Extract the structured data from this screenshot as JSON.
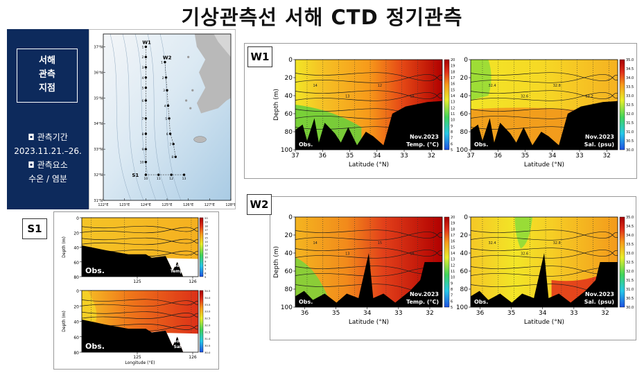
{
  "title": "기상관측선 서해 CTD 정기관측",
  "info": {
    "box_lines": [
      "서해",
      "관측",
      "지점"
    ],
    "period_label": "◘ 관측기간",
    "period_value": "2023.11.21.–26.",
    "elements_label": "◘ 관측요소",
    "elements_value": "수온 / 염분"
  },
  "map": {
    "lat_labels": [
      "37°N",
      "36°N",
      "35°N",
      "34°N",
      "33°N",
      "32°N",
      "31°N"
    ],
    "lon_labels": [
      "122°E",
      "123°E",
      "124°E",
      "125°E",
      "126°E",
      "127°E",
      "128°E"
    ],
    "line_labels": [
      "W1",
      "W2",
      "S1"
    ],
    "w1_station_numbers": [
      "1",
      "2",
      "3",
      "4",
      "5",
      "6",
      "7",
      "8",
      "9",
      "10"
    ],
    "w2_station_numbers": [
      "1",
      "2",
      "3",
      "4",
      "5",
      "6",
      "7",
      "8"
    ],
    "s1_station_numbers": [
      "10",
      "11",
      "12",
      "13"
    ]
  },
  "tags": {
    "w1": "W1",
    "w2": "W2",
    "s1": "S1"
  },
  "chart_data": [
    {
      "id": "w1-temp",
      "type": "heatmap",
      "section": "W1",
      "xlabel": "Latitude (°N)",
      "ylabel": "Depth (m)",
      "x_ticks": [
        "37",
        "36",
        "35",
        "34",
        "33",
        "32"
      ],
      "y_ticks": [
        "0",
        "20",
        "40",
        "60",
        "80",
        "100"
      ],
      "xlim": [
        37,
        31.6
      ],
      "ylim": [
        0,
        100
      ],
      "obs_label": "Obs.",
      "date_label": "Nov.2023",
      "var_label": "Temp. (°C)",
      "colorbar": [
        "20",
        "19",
        "18",
        "17",
        "16",
        "15",
        "14",
        "13",
        "12",
        "11",
        "10",
        "9",
        "8",
        "7",
        "6",
        "5"
      ],
      "contour_labels": [
        "14",
        "13",
        "12",
        "15"
      ],
      "colors": {
        "low": "#2f63d6",
        "mid": "#f2e526",
        "high": "#b10000"
      }
    },
    {
      "id": "w1-sal",
      "type": "heatmap",
      "section": "W1",
      "xlabel": "Latitude (°N)",
      "ylabel": "",
      "x_ticks": [
        "37",
        "36",
        "35",
        "34",
        "33",
        "32"
      ],
      "y_ticks": [
        "0",
        "20",
        "40",
        "60",
        "80",
        "100"
      ],
      "xlim": [
        37,
        31.6
      ],
      "ylim": [
        0,
        100
      ],
      "obs_label": "Obs.",
      "date_label": "Nov.2023",
      "var_label": "Sal. (psu)",
      "colorbar": [
        "35.0",
        "34.5",
        "34.0",
        "33.5",
        "33.0",
        "32.5",
        "32.0",
        "31.5",
        "31.0",
        "30.5",
        "30.0"
      ],
      "contour_labels": [
        "32.4",
        "32.6",
        "32.8",
        "33.2"
      ],
      "colors": {
        "low": "#2f63d6",
        "mid": "#f2e526",
        "high": "#b10000"
      }
    },
    {
      "id": "w2-temp",
      "type": "heatmap",
      "section": "W2",
      "xlabel": "Latitude (°N)",
      "ylabel": "Depth (m)",
      "x_ticks": [
        "36",
        "35",
        "34",
        "33",
        "32"
      ],
      "y_ticks": [
        "0",
        "20",
        "40",
        "60",
        "80",
        "100"
      ],
      "xlim": [
        36.3,
        31.6
      ],
      "ylim": [
        0,
        100
      ],
      "obs_label": "Obs.",
      "date_label": "Nov.2023",
      "var_label": "Temp. (°C)",
      "colorbar": [
        "20",
        "19",
        "18",
        "17",
        "16",
        "15",
        "14",
        "13",
        "12",
        "11",
        "10",
        "9",
        "8",
        "7",
        "6",
        "5"
      ],
      "contour_labels": [
        "14",
        "13",
        "15",
        "16"
      ],
      "colors": {
        "low": "#2f63d6",
        "mid": "#f2e526",
        "high": "#b10000"
      }
    },
    {
      "id": "w2-sal",
      "type": "heatmap",
      "section": "W2",
      "xlabel": "Latitude (°N)",
      "ylabel": "",
      "x_ticks": [
        "36",
        "35",
        "34",
        "33",
        "32"
      ],
      "y_ticks": [
        "0",
        "20",
        "40",
        "60",
        "80",
        "100"
      ],
      "xlim": [
        36.3,
        31.6
      ],
      "ylim": [
        0,
        100
      ],
      "obs_label": "Obs.",
      "date_label": "Nov.2023",
      "var_label": "Sal. (psu)",
      "colorbar": [
        "35.0",
        "34.5",
        "34.0",
        "33.5",
        "33.0",
        "32.5",
        "32.0",
        "31.5",
        "31.0",
        "30.5",
        "30.0"
      ],
      "contour_labels": [
        "32.4",
        "32.6",
        "32.8"
      ],
      "colors": {
        "low": "#2f63d6",
        "mid": "#f2e526",
        "high": "#b10000"
      }
    },
    {
      "id": "s1-temp",
      "type": "heatmap",
      "section": "S1",
      "xlabel": "",
      "ylabel": "Depth (m)",
      "x_ticks": [
        "125",
        "126"
      ],
      "y_ticks": [
        "0",
        "20",
        "40",
        "60",
        "80"
      ],
      "xlim": [
        124.0,
        126.1
      ],
      "ylim": [
        0,
        80
      ],
      "obs_label": "Obs.",
      "date_label": "Nov.2023",
      "var_label": "Temp. (°C)",
      "colorbar": [
        "20",
        "19",
        "18",
        "17",
        "16",
        "15",
        "14",
        "13",
        "12",
        "11",
        "10",
        "9",
        "8",
        "7",
        "6",
        "5"
      ],
      "contour_labels": [],
      "colors": {
        "low": "#2f63d6",
        "mid": "#f2e526",
        "high": "#b10000"
      }
    },
    {
      "id": "s1-sal",
      "type": "heatmap",
      "section": "S1",
      "xlabel": "Longitude (°E)",
      "ylabel": "Depth (m)",
      "x_ticks": [
        "125",
        "126"
      ],
      "y_ticks": [
        "0",
        "20",
        "40",
        "60",
        "80"
      ],
      "xlim": [
        124.0,
        126.1
      ],
      "ylim": [
        0,
        80
      ],
      "obs_label": "Obs.",
      "date_label": "Nov.2023",
      "var_label": "Sal.(psu)",
      "colorbar": [
        "34.5",
        "34.0",
        "33.5",
        "33.0",
        "32.5",
        "32.0",
        "31.5",
        "31.0",
        "30.5",
        "30.0"
      ],
      "contour_labels": [],
      "colors": {
        "low": "#2f63d6",
        "mid": "#f2e526",
        "high": "#b10000"
      }
    }
  ]
}
